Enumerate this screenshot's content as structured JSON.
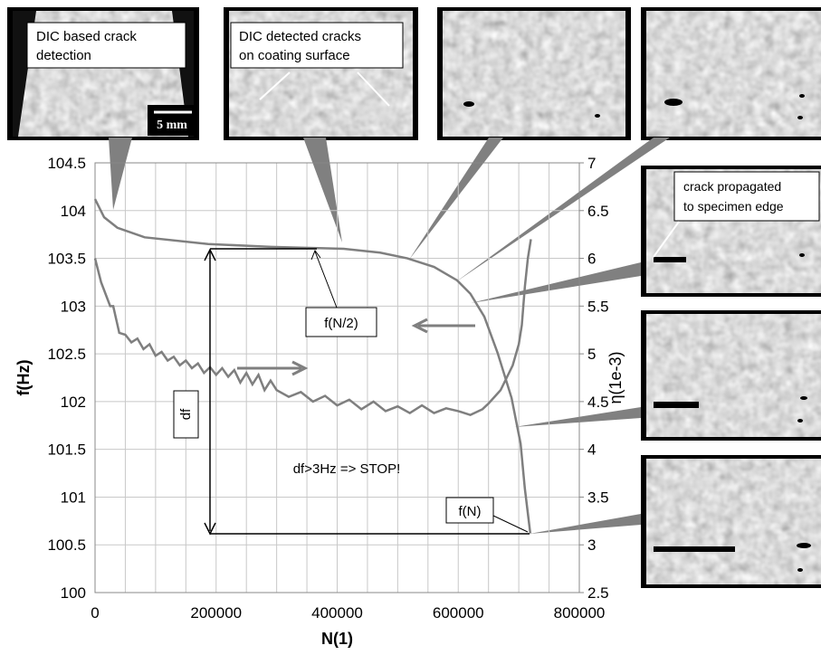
{
  "chart_data": {
    "type": "line",
    "xlabel": "N(1)",
    "ylabel": "f(Hz)",
    "y2label": "η(1e-3)",
    "xlim": [
      0,
      800000
    ],
    "xticks": [
      0,
      200000,
      400000,
      600000,
      800000
    ],
    "xgrid": [
      0,
      50000,
      100000,
      150000,
      200000,
      250000,
      300000,
      350000,
      400000,
      450000,
      500000,
      550000,
      600000,
      650000,
      700000,
      750000,
      800000
    ],
    "ylim": [
      100,
      104.5
    ],
    "yticks": [
      100,
      100.5,
      101,
      101.5,
      102,
      102.5,
      103,
      103.5,
      104,
      104.5
    ],
    "y2lim": [
      2.5,
      7
    ],
    "y2ticks": [
      2.5,
      3,
      3.5,
      4,
      4.5,
      5,
      5.5,
      6,
      6.5,
      7
    ],
    "grid": true,
    "series": [
      {
        "color": "#7f7f7f",
        "x": [
          0,
          15000,
          37000,
          82000,
          187000,
          291000,
          411000,
          471000,
          516000,
          560000,
          598000,
          620000,
          643000,
          665000,
          688000,
          703000,
          710000,
          719000
        ],
        "values": [
          104.12,
          103.93,
          103.82,
          103.72,
          103.65,
          103.62,
          103.6,
          103.56,
          103.5,
          103.41,
          103.27,
          103.13,
          102.89,
          102.51,
          102.04,
          101.56,
          101.09,
          100.62
        ]
      },
      {
        "color": "#7f7f7f",
        "axis": "y2",
        "x": [
          0,
          10000,
          25000,
          30000,
          40000,
          50000,
          60000,
          70000,
          80000,
          90000,
          100000,
          110000,
          120000,
          130000,
          140000,
          150000,
          160000,
          170000,
          180000,
          190000,
          200000,
          210000,
          220000,
          230000,
          240000,
          250000,
          260000,
          270000,
          280000,
          290000,
          300000,
          320000,
          340000,
          360000,
          380000,
          400000,
          420000,
          440000,
          460000,
          480000,
          500000,
          520000,
          540000,
          560000,
          580000,
          600000,
          620000,
          640000,
          650000,
          660000,
          670000,
          680000,
          690000,
          700000,
          705000,
          710000,
          715000,
          720000
        ],
        "values": [
          6.0,
          5.75,
          5.5,
          5.5,
          5.22,
          5.2,
          5.12,
          5.16,
          5.05,
          5.1,
          4.98,
          5.02,
          4.93,
          4.97,
          4.88,
          4.93,
          4.85,
          4.9,
          4.8,
          4.86,
          4.78,
          4.85,
          4.76,
          4.83,
          4.7,
          4.8,
          4.68,
          4.78,
          4.62,
          4.72,
          4.62,
          4.55,
          4.6,
          4.5,
          4.56,
          4.46,
          4.52,
          4.42,
          4.5,
          4.4,
          4.45,
          4.38,
          4.46,
          4.38,
          4.43,
          4.4,
          4.36,
          4.42,
          4.48,
          4.55,
          4.62,
          4.75,
          4.88,
          5.1,
          5.3,
          5.7,
          6.0,
          6.2
        ]
      }
    ],
    "annotations": {
      "half": "f(N/2)",
      "df": "df",
      "stop": "df>3Hz => STOP!",
      "end": "f(N)"
    }
  },
  "insets": {
    "dic": [
      "DIC based crack",
      "detection"
    ],
    "cracks": [
      "DIC detected cracks",
      "on coating surface"
    ],
    "scale": "5 mm",
    "edge": [
      "crack propagated",
      "to specimen edge"
    ]
  }
}
